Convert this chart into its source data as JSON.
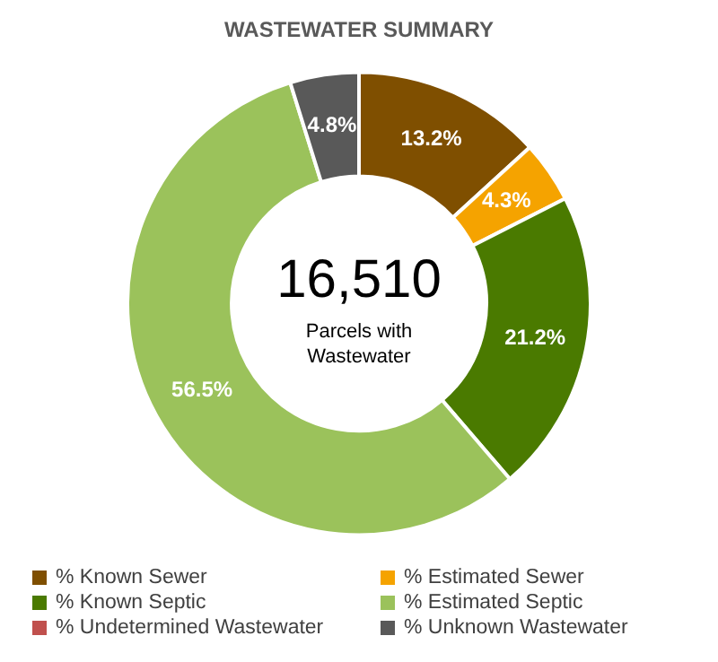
{
  "chart_data": {
    "type": "donut",
    "title": "WASTEWATER SUMMARY",
    "categories": [
      "% Known Sewer",
      "% Estimated Sewer",
      "% Known Septic",
      "% Estimated Septic",
      "% Undetermined Wastewater",
      "% Unknown Wastewater"
    ],
    "values": [
      13.2,
      4.3,
      21.2,
      56.5,
      0,
      4.8
    ],
    "colors": [
      "#7f4f00",
      "#f5a300",
      "#4a7a00",
      "#9bc25b",
      "#c0504d",
      "#595959"
    ],
    "value_labels": [
      "13.2%",
      "4.3%",
      "21.2%",
      "56.5%",
      null,
      "4.8%"
    ],
    "annotations": [
      "16,510",
      "Parcels with Wastewater"
    ],
    "legend": "bottom"
  }
}
